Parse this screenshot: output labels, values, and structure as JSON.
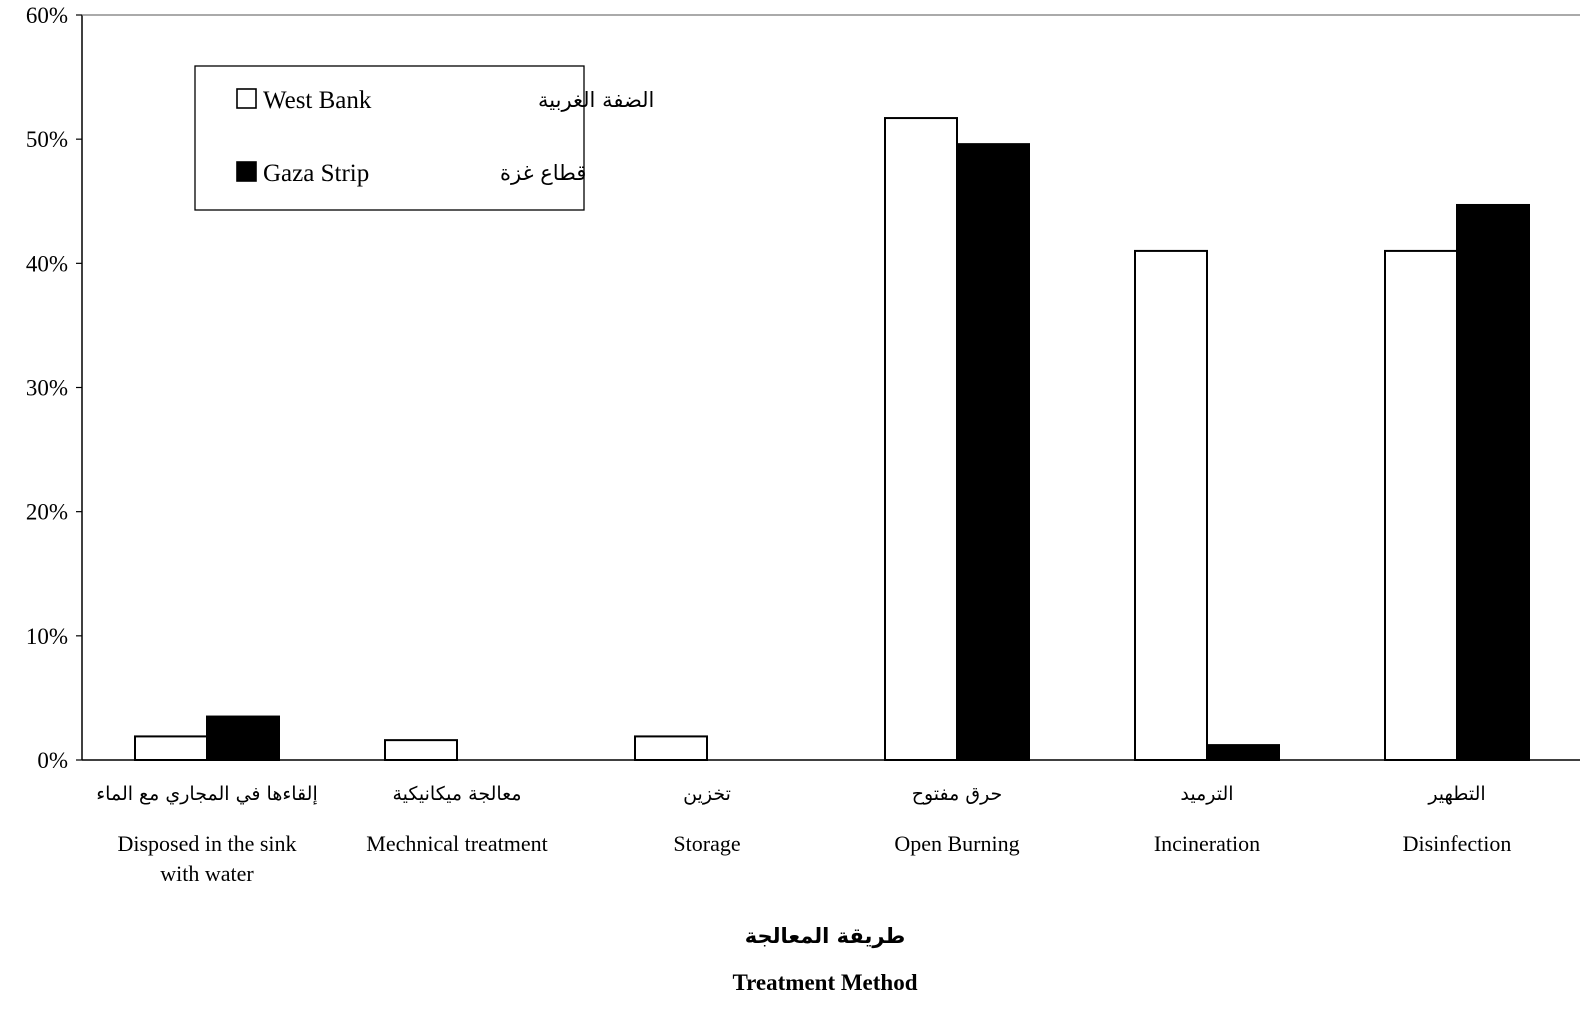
{
  "chart_data": {
    "type": "bar",
    "title": "",
    "xlabel": "Treatment Method",
    "xlabel_ar": "طريقة المعالجة",
    "ylabel": "",
    "ylim": [
      0,
      0.6
    ],
    "yticks": [
      0,
      0.1,
      0.2,
      0.3,
      0.4,
      0.5,
      0.6
    ],
    "ytick_labels": [
      "0%",
      "10%",
      "20%",
      "30%",
      "40%",
      "50%",
      "60%"
    ],
    "grid": false,
    "legend_position": "top-left",
    "categories": [
      {
        "en": [
          "Disposed in the sink",
          "with water"
        ],
        "ar": "إلقاءها في المجاري مع الماء"
      },
      {
        "en": [
          "Mechnical treatment"
        ],
        "ar": "معالجة  ميكانيكية"
      },
      {
        "en": [
          "Storage"
        ],
        "ar": "تخزين"
      },
      {
        "en": [
          "Open Burning"
        ],
        "ar": "حرق مفتوح"
      },
      {
        "en": [
          "Incineration"
        ],
        "ar": "الترميد"
      },
      {
        "en": [
          "Disinfection"
        ],
        "ar": "التطهير"
      }
    ],
    "series": [
      {
        "name": "West Bank",
        "name_ar": "الضفة الغربية",
        "color": "#ffffff",
        "values": [
          0.019,
          0.016,
          0.019,
          0.517,
          0.41,
          0.41
        ]
      },
      {
        "name": "Gaza Strip",
        "name_ar": "قطاع غزة",
        "color": "#000000",
        "values": [
          0.035,
          0,
          0,
          0.496,
          0.012,
          0.447
        ]
      }
    ]
  }
}
